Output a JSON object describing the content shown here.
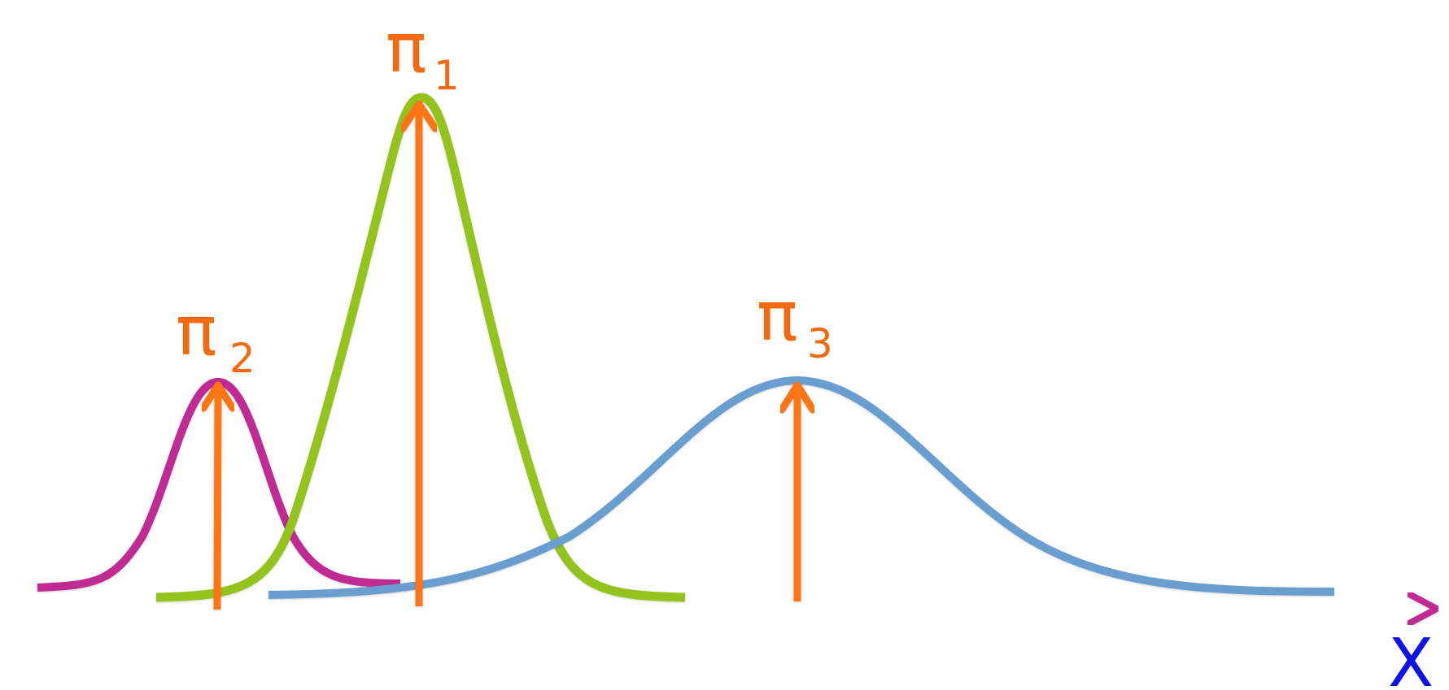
{
  "axis": {
    "label": "X",
    "line_color": "#C02A93",
    "label_color": "#1010E8"
  },
  "arrow_color": "#FF7418",
  "label_color": "#F26A12",
  "components": [
    {
      "symbol": "π",
      "index": "1",
      "curve_color": "#93C31B"
    },
    {
      "symbol": "π",
      "index": "2",
      "curve_color": "#C02A93"
    },
    {
      "symbol": "π",
      "index": "3",
      "curve_color": "#6B9ECF"
    }
  ]
}
